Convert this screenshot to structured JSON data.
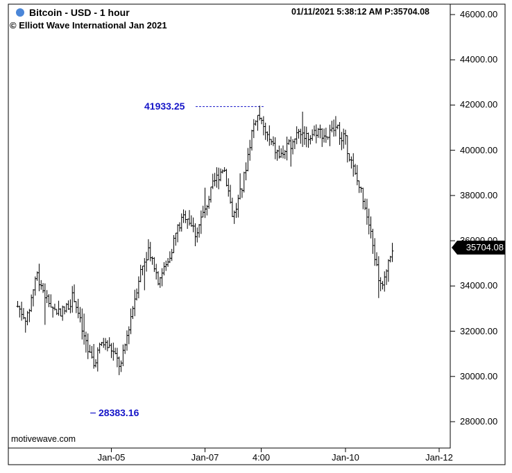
{
  "header": {
    "title": "Bitcoin - USD - 1 hour",
    "copyright": "© Elliott Wave International Jan 2021",
    "timestamp": "01/11/2021 5:38:12 AM  P:35704.08",
    "dot_color": "#4a86d8"
  },
  "watermark": "motivewave.com",
  "annotations": {
    "high_label": "41933.25",
    "low_label": "28383.16",
    "label_color": "#1515c8"
  },
  "last_price_tag": "35704.08",
  "chart_data": {
    "type": "bar",
    "style": "ohlc",
    "title": "Bitcoin - USD - 1 hour",
    "ylim": [
      27000,
      46500
    ],
    "y_ticks": [
      "46000.00",
      "44000.00",
      "42000.00",
      "40000.00",
      "38000.00",
      "36000.00",
      "34000.00",
      "32000.00",
      "30000.00",
      "28000.00"
    ],
    "x_ticks": [
      "Jan-05",
      "Jan-07",
      "4:00",
      "Jan-10",
      "Jan-12"
    ],
    "x_tick_days": [
      5.0,
      7.0,
      8.2,
      10.0,
      12.0
    ],
    "x_range_days": [
      2.8,
      12.0
    ],
    "grid": false,
    "high": 41933.25,
    "low": 28383.16,
    "last": 35704.08,
    "series": [
      {
        "values": [
          [
            3.0,
            33100
          ],
          [
            3.2,
            32500
          ],
          [
            3.4,
            34600
          ],
          [
            3.6,
            33500
          ],
          [
            3.8,
            32900
          ],
          [
            4.0,
            32900
          ],
          [
            4.2,
            33600
          ],
          [
            4.4,
            31800
          ],
          [
            4.6,
            30500
          ],
          [
            4.8,
            31500
          ],
          [
            5.0,
            31200
          ],
          [
            5.2,
            30400
          ],
          [
            5.4,
            32500
          ],
          [
            5.6,
            34500
          ],
          [
            5.8,
            35700
          ],
          [
            6.0,
            34300
          ],
          [
            6.2,
            35000
          ],
          [
            6.4,
            36500
          ],
          [
            6.6,
            37200
          ],
          [
            6.8,
            36300
          ],
          [
            7.0,
            37400
          ],
          [
            7.2,
            38600
          ],
          [
            7.4,
            39300
          ],
          [
            7.5,
            38200
          ],
          [
            7.6,
            37000
          ],
          [
            7.8,
            38400
          ],
          [
            8.0,
            40800
          ],
          [
            8.1,
            41600
          ],
          [
            8.2,
            41200
          ],
          [
            8.4,
            40300
          ],
          [
            8.6,
            39700
          ],
          [
            8.8,
            40200
          ],
          [
            9.0,
            40900
          ],
          [
            9.2,
            40600
          ],
          [
            9.4,
            40900
          ],
          [
            9.6,
            40600
          ],
          [
            9.8,
            41000
          ],
          [
            10.0,
            40400
          ],
          [
            10.2,
            38900
          ],
          [
            10.4,
            37800
          ],
          [
            10.6,
            35600
          ],
          [
            10.7,
            34400
          ],
          [
            10.8,
            33800
          ],
          [
            10.9,
            35100
          ],
          [
            11.0,
            35704
          ]
        ]
      }
    ]
  }
}
